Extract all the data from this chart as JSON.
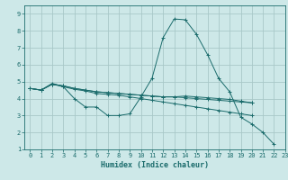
{
  "title": "",
  "xlabel": "Humidex (Indice chaleur)",
  "bg_color": "#cde8e8",
  "grid_color": "#a8c8c8",
  "line_color": "#1a6b6b",
  "xlim": [
    -0.5,
    23
  ],
  "ylim": [
    1,
    9.5
  ],
  "xticks": [
    0,
    1,
    2,
    3,
    4,
    5,
    6,
    7,
    8,
    9,
    10,
    11,
    12,
    13,
    14,
    15,
    16,
    17,
    18,
    19,
    20,
    21,
    22,
    23
  ],
  "yticks": [
    1,
    2,
    3,
    4,
    5,
    6,
    7,
    8,
    9
  ],
  "lines": [
    {
      "x": [
        0,
        1,
        2,
        3,
        4,
        5,
        6,
        7,
        8,
        9,
        10,
        11,
        12,
        13,
        14,
        15,
        16,
        17,
        18,
        19,
        20,
        21,
        22
      ],
      "y": [
        4.6,
        4.5,
        4.9,
        4.7,
        4.0,
        3.5,
        3.5,
        3.0,
        3.0,
        3.1,
        4.1,
        5.2,
        7.6,
        8.7,
        8.65,
        7.8,
        6.6,
        5.2,
        4.4,
        2.9,
        2.5,
        2.0,
        1.3
      ]
    },
    {
      "x": [
        0,
        1,
        2,
        3,
        4,
        5,
        6,
        7,
        8,
        9,
        10,
        11,
        12,
        13,
        14,
        15,
        16,
        17,
        18,
        19,
        20
      ],
      "y": [
        4.6,
        4.5,
        4.85,
        4.75,
        4.6,
        4.5,
        4.4,
        4.35,
        4.3,
        4.25,
        4.2,
        4.15,
        4.1,
        4.1,
        4.05,
        4.0,
        3.95,
        3.9,
        3.85,
        3.8,
        3.75
      ]
    },
    {
      "x": [
        0,
        1,
        2,
        3,
        4,
        5,
        6,
        7,
        8,
        9,
        10,
        11,
        12,
        13,
        14,
        15,
        16,
        17,
        18,
        19,
        20
      ],
      "y": [
        4.6,
        4.5,
        4.85,
        4.75,
        4.6,
        4.5,
        4.4,
        4.35,
        4.3,
        4.25,
        4.2,
        4.15,
        4.1,
        4.1,
        4.15,
        4.1,
        4.05,
        4.0,
        3.95,
        3.85,
        3.75
      ]
    },
    {
      "x": [
        0,
        1,
        2,
        3,
        4,
        5,
        6,
        7,
        8,
        9,
        10,
        11,
        12,
        13,
        14,
        15,
        16,
        17,
        18,
        19,
        20
      ],
      "y": [
        4.6,
        4.5,
        4.85,
        4.7,
        4.55,
        4.45,
        4.3,
        4.25,
        4.2,
        4.1,
        4.0,
        3.9,
        3.8,
        3.7,
        3.6,
        3.5,
        3.4,
        3.3,
        3.2,
        3.1,
        3.0
      ]
    }
  ],
  "tick_fontsize": 5.0,
  "xlabel_fontsize": 6.0,
  "marker_size": 2.5,
  "line_width": 0.7
}
